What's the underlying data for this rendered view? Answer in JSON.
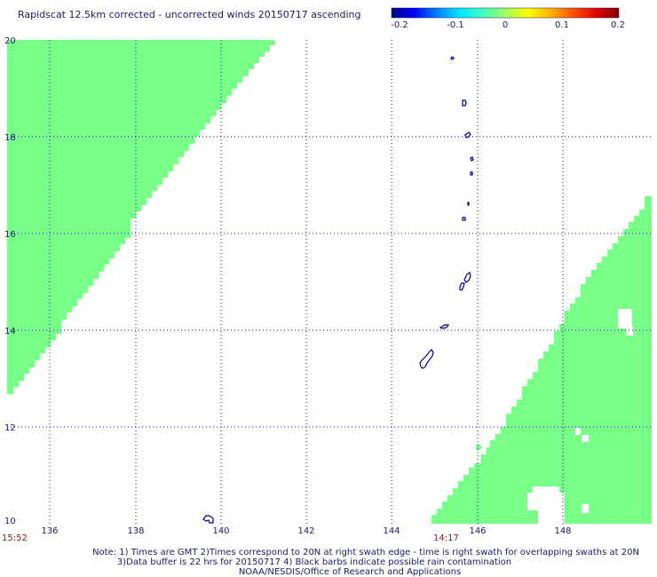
{
  "title": "Rapidscat 12.5km corrected - uncorrected winds 20150717 ascending",
  "colorbar": {
    "ticks": [
      "-0.2",
      "-0.1",
      "0",
      "0.1",
      "0.2"
    ],
    "range": [
      -0.2,
      0.2
    ],
    "colors": [
      "#000080",
      "#0000ff",
      "#0080ff",
      "#00e5ff",
      "#40ffc0",
      "#a0ff60",
      "#ffff00",
      "#ffb000",
      "#ff5000",
      "#e00000",
      "#800000"
    ]
  },
  "map": {
    "lon_range": [
      135,
      150
    ],
    "lat_range": [
      10,
      20
    ],
    "lon_ticks": [
      "136",
      "138",
      "140",
      "142",
      "144",
      "146",
      "148"
    ],
    "lat_ticks": [
      "20",
      "18",
      "16",
      "14",
      "12",
      "10"
    ],
    "swath_color": "#77ff88",
    "land_color": "#00008b"
  },
  "times": {
    "left": "15:52",
    "right": "14:17"
  },
  "notes": {
    "line1": "Note: 1) Times are GMT 2)Times correspond to 20N at right swath edge - time is right swath for overlapping swaths at 20N",
    "line2": "3)Data buffer is 22 hrs for 20150717 4) Black barbs indicate possible rain contamination",
    "line3": "NOAA/NESDIS/Office of Research and Applications"
  }
}
